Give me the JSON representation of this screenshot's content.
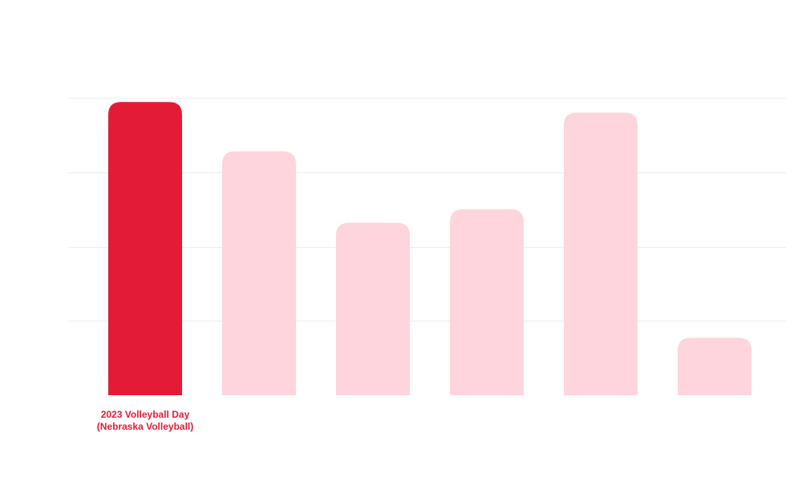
{
  "chart_data": {
    "type": "bar",
    "title": "",
    "xlabel": "",
    "ylabel": "",
    "grid": true,
    "ylim": [
      0,
      100
    ],
    "categories": [
      [
        "2023 Volleyball Day",
        "(Nebraska Volleyball)"
      ],
      "",
      "",
      "",
      "",
      ""
    ],
    "values": [
      98.6,
      82.0,
      58.0,
      62.5,
      95.0,
      19.3
    ],
    "highlight_index": 0
  },
  "colors": {
    "highlight": "#e31b37",
    "muted": "#fed5dc",
    "grid": "#ececec",
    "label": "#e31b37"
  }
}
